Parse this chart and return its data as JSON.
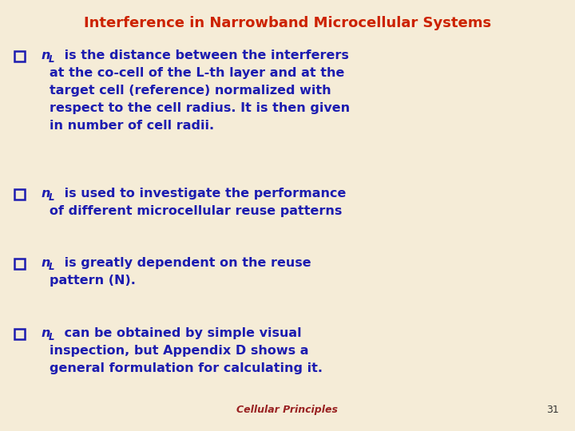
{
  "title": "Interference in Narrowband Microcellular Systems",
  "title_color": "#CC2200",
  "title_fontsize": 13,
  "background_color": "#F5ECD7",
  "bullet_color": "#1C1CB0",
  "bullet_fontsize": 11.5,
  "footer_text": "Cellular Principles",
  "footer_color": "#992222",
  "footer_fontsize": 9,
  "page_number": "31",
  "page_number_color": "#333333",
  "page_number_fontsize": 9,
  "checkbox_color": "#1C1CB0",
  "bullets": [
    {
      "lines": [
        {
          "has_nl": true,
          "text": " is the distance between the interferers"
        },
        {
          "has_nl": false,
          "text": "at the co-cell of the L-th layer and at the"
        },
        {
          "has_nl": false,
          "text": "target cell (reference) normalized with"
        },
        {
          "has_nl": false,
          "text": "respect to the cell radius. It is then given"
        },
        {
          "has_nl": false,
          "text": "in number of cell radii."
        }
      ]
    },
    {
      "lines": [
        {
          "has_nl": true,
          "text": " is used to investigate the performance"
        },
        {
          "has_nl": false,
          "text": "of different microcellular reuse patterns"
        }
      ]
    },
    {
      "lines": [
        {
          "has_nl": true,
          "text": " is greatly dependent on the reuse"
        },
        {
          "has_nl": false,
          "text": "pattern (N)."
        }
      ]
    },
    {
      "lines": [
        {
          "has_nl": true,
          "text": " can be obtained by simple visual"
        },
        {
          "has_nl": false,
          "text": "inspection, but Appendix D shows a"
        },
        {
          "has_nl": false,
          "text": "general formulation for calculating it."
        }
      ]
    }
  ]
}
